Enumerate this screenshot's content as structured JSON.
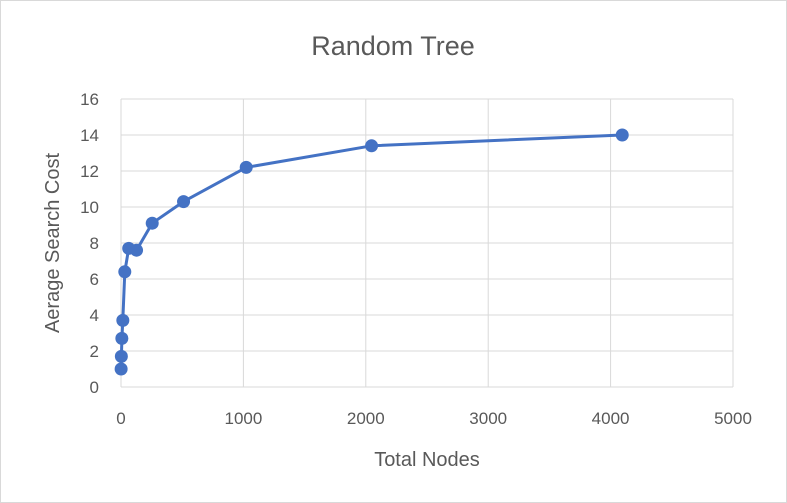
{
  "chart_data": {
    "type": "scatter",
    "title": "Random Tree",
    "xlabel": "Total Nodes",
    "ylabel": "Aerage Search Cost",
    "xlim": [
      0,
      5000
    ],
    "ylim": [
      0,
      16
    ],
    "x_ticks": [
      "0",
      "1000",
      "2000",
      "3000",
      "4000",
      "5000"
    ],
    "y_ticks": [
      "0",
      "2",
      "4",
      "6",
      "8",
      "10",
      "12",
      "14",
      "16"
    ],
    "grid": true,
    "legend": "none",
    "series": [
      {
        "color": "#4472c4",
        "line": true,
        "marker": "circle",
        "points": [
          {
            "x": 1,
            "y": 1.0
          },
          {
            "x": 3,
            "y": 1.7
          },
          {
            "x": 7,
            "y": 2.7
          },
          {
            "x": 15,
            "y": 3.7
          },
          {
            "x": 31,
            "y": 6.4
          },
          {
            "x": 63,
            "y": 7.7
          },
          {
            "x": 127,
            "y": 7.6
          },
          {
            "x": 255,
            "y": 9.1
          },
          {
            "x": 511,
            "y": 10.3
          },
          {
            "x": 1023,
            "y": 12.2
          },
          {
            "x": 2047,
            "y": 13.4
          },
          {
            "x": 4095,
            "y": 14.0
          }
        ]
      }
    ]
  }
}
